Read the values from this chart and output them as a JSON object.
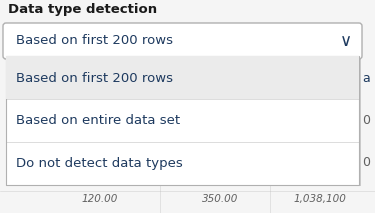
{
  "title": "Data type detection",
  "dropdown_selected": "Based on first 200 rows",
  "options": [
    {
      "text": "Based on first 200 rows",
      "highlighted": true
    },
    {
      "text": "Based on entire data set",
      "highlighted": false
    },
    {
      "text": "Do not detect data types",
      "highlighted": false
    }
  ],
  "bottom_values": [
    "120.00",
    "350.00",
    "1,038,100"
  ],
  "side_letters": [
    "a",
    "0",
    "0"
  ],
  "bg_color": "#f5f5f5",
  "dropdown_border_color": "#b0b0b0",
  "highlight_color": "#ebebeb",
  "title_color": "#1a1a1a",
  "text_dark": "#1e3a5f",
  "bottom_text_color": "#606060",
  "panel_bg": "#ffffff",
  "panel_shadow": "#cccccc",
  "fig_width": 3.75,
  "fig_height": 2.13,
  "dpi": 100
}
